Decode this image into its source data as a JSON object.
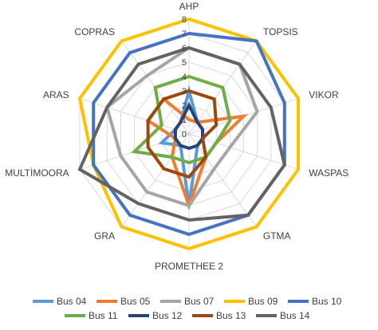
{
  "chart_data": {
    "type": "radar",
    "title": "",
    "axes": [
      "AHP",
      "TOPSIS",
      "VIKOR",
      "WASPAS",
      "GTMA",
      "PROMETHEE 2",
      "GRA",
      "MULTİMOORA",
      "ARAS",
      "COPRAS"
    ],
    "ticks": [
      "0",
      "1",
      "2",
      "3",
      "4",
      "5",
      "6",
      "7",
      "8"
    ],
    "rlim": [
      0,
      8
    ],
    "grid": true,
    "legend": "bottom",
    "series": [
      {
        "name": "Bus 04",
        "color": "#5B9BD5",
        "values": [
          3,
          1,
          1,
          1,
          1,
          5,
          1,
          2,
          1,
          1
        ]
      },
      {
        "name": "Bus 05",
        "color": "#ED7D31",
        "values": [
          1,
          1,
          4,
          2,
          2,
          5,
          2,
          1,
          3,
          3
        ]
      },
      {
        "name": "Bus 07",
        "color": "#A5A5A5",
        "values": [
          6,
          6,
          5,
          3,
          3,
          5,
          5,
          5,
          6,
          5
        ]
      },
      {
        "name": "Bus 09",
        "color": "#FFC000",
        "values": [
          8,
          8,
          8,
          8,
          8,
          8,
          8,
          7,
          8,
          8
        ]
      },
      {
        "name": "Bus 10",
        "color": "#4472C4",
        "values": [
          7,
          8,
          7,
          7,
          7,
          7,
          7,
          7,
          7,
          7
        ]
      },
      {
        "name": "Bus 11",
        "color": "#70AD47",
        "values": [
          4,
          4,
          3,
          2,
          2,
          2,
          2,
          4,
          2,
          4
        ]
      },
      {
        "name": "Bus 12",
        "color": "#264478",
        "values": [
          2,
          1,
          1,
          1,
          1,
          1,
          1,
          1,
          1,
          1
        ]
      },
      {
        "name": "Bus 13",
        "color": "#9E480E",
        "values": [
          3,
          3,
          2,
          1,
          2,
          3,
          3,
          3,
          3,
          3
        ]
      },
      {
        "name": "Bus 14",
        "color": "#636363",
        "values": [
          6,
          6,
          6,
          7,
          7,
          6,
          6,
          8,
          6,
          6
        ]
      }
    ]
  }
}
